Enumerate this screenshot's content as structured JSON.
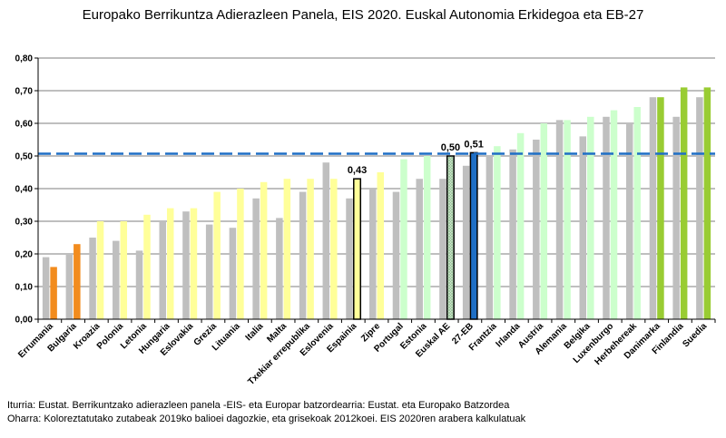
{
  "chart_data": {
    "type": "bar",
    "title": "Europako Berrikuntza Adierazleen Panela, EIS 2020. Euskal Autonomia Erkidegoa eta EB-27",
    "xlabel": "",
    "ylabel": "",
    "ylim": [
      0,
      0.8
    ],
    "yticks": [
      "0,00",
      "0,10",
      "0,20",
      "0,30",
      "0,40",
      "0,50",
      "0,60",
      "0,70",
      "0,80"
    ],
    "grid": true,
    "categories": [
      "Errumania",
      "Bulgaria",
      "Kroazia",
      "Polonia",
      "Letonia",
      "Hungaria",
      "Eslovakia",
      "Grezia",
      "Lituania",
      "Italia",
      "Malta",
      "Txekiar errepublika",
      "Eslovenia",
      "Espainia",
      "Zipre",
      "Portugal",
      "Estonia",
      "Euskal AE",
      "27-EB",
      "Frantzia",
      "Irlanda",
      "Austria",
      "Alemania",
      "Belgika",
      "Luxenburgo",
      "Herbehereak",
      "Danimarka",
      "Finlandia",
      "Suedia"
    ],
    "series": [
      {
        "name": "2012",
        "color": "#bfbfbf",
        "values": [
          0.19,
          0.2,
          0.25,
          0.24,
          0.21,
          0.3,
          0.33,
          0.29,
          0.28,
          0.37,
          0.31,
          0.39,
          0.48,
          0.37,
          0.4,
          0.39,
          0.43,
          0.43,
          0.47,
          0.5,
          0.52,
          0.55,
          0.61,
          0.56,
          0.62,
          0.6,
          0.68,
          0.62,
          0.68
        ]
      },
      {
        "name": "2019",
        "color_by_group": true,
        "values": [
          0.16,
          0.23,
          0.3,
          0.3,
          0.32,
          0.34,
          0.34,
          0.39,
          0.4,
          0.42,
          0.43,
          0.43,
          0.43,
          0.43,
          0.45,
          0.49,
          0.5,
          0.5,
          0.51,
          0.53,
          0.57,
          0.6,
          0.61,
          0.62,
          0.64,
          0.65,
          0.68,
          0.71,
          0.71
        ]
      }
    ],
    "bar_groups": [
      "modest",
      "modest",
      "moderate",
      "moderate",
      "moderate",
      "moderate",
      "moderate",
      "moderate",
      "moderate",
      "moderate",
      "moderate",
      "moderate",
      "moderate",
      "espainia",
      "moderate",
      "strong",
      "strong",
      "eae",
      "eb",
      "strong",
      "strong",
      "strong",
      "strong",
      "strong",
      "strong",
      "strong",
      "leader",
      "leader",
      "leader"
    ],
    "group_colors": {
      "modest": "#f28c1e",
      "moderate": "#ffff99",
      "strong": "#ccffcc",
      "leader": "#99cc33",
      "espainia": "#ffff99",
      "eae": "#b7dcb7",
      "eb": "#1f6fc5"
    },
    "reference_line": {
      "value": 0.507,
      "color": "#1f6fc5",
      "style": "dashed"
    },
    "data_labels": [
      {
        "category": "Espainia",
        "text": "0,43"
      },
      {
        "category": "Euskal AE",
        "text": "0,50"
      },
      {
        "category": "27-EB",
        "text": "0,51"
      }
    ]
  },
  "notes": {
    "source": "Iturria: Eustat. Berrikuntzako adierazleen panela -EIS- eta Europar batzordearria: Eustat. eta Europako Batzordea",
    "remark": "Oharra: Koloreztatutako zutabeak 2019ko balioei dagozkie, eta grisekoak 2012koei. EIS 2020ren arabera kalkulatuak"
  }
}
